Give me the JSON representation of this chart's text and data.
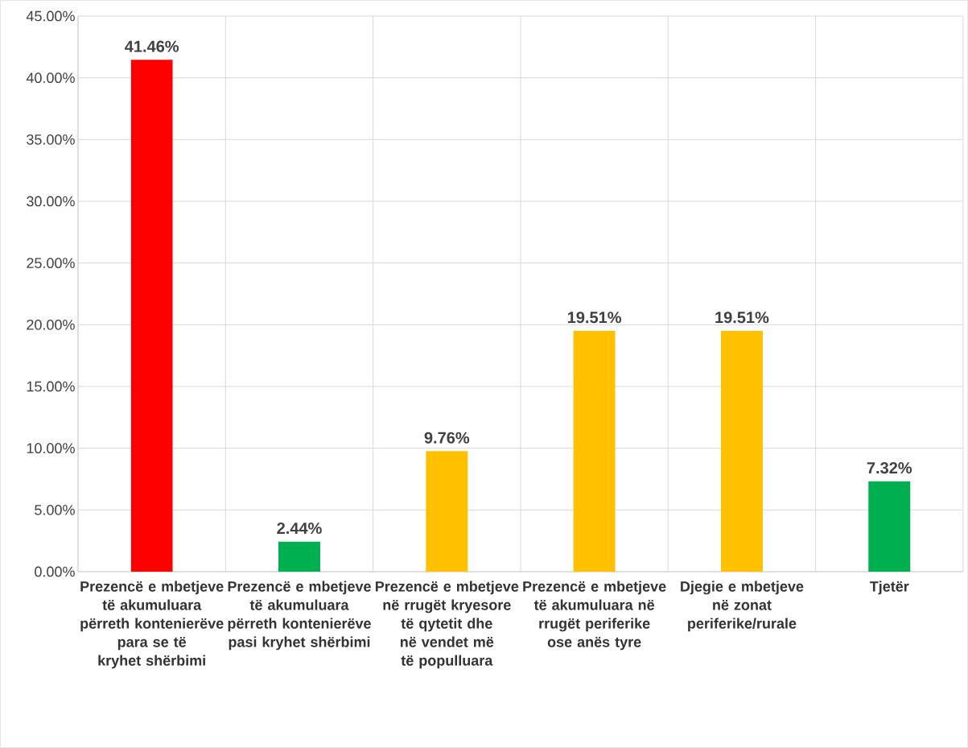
{
  "chart_data": {
    "type": "bar",
    "categories": [
      "Prezencë e mbetjeve të akumuluara përreth kontenierëve para se të kryhet shërbimi",
      "Prezencë e mbetjeve të akumuluara përreth kontenierëve pasi kryhet shërbimi",
      "Prezencë e mbetjeve në rrugët kryesore të qytetit dhe në vendet më të populluara",
      "Prezencë e mbetjeve të akumuluara në rrugët periferike ose anës tyre",
      "Djegie e mbetjeve në zonat periferike/rurale",
      "Tjetër"
    ],
    "values": [
      41.46,
      2.44,
      9.76,
      19.51,
      19.51,
      7.32
    ],
    "colors": [
      "#ff0000",
      "#00b050",
      "#ffc000",
      "#ffc000",
      "#ffc000",
      "#00b050"
    ],
    "value_labels": [
      "41.46%",
      "2.44%",
      "9.76%",
      "19.51%",
      "19.51%",
      "7.32%"
    ],
    "ylim": [
      0,
      45
    ],
    "yticks": [
      {
        "value": 0,
        "label": "0.00%"
      },
      {
        "value": 5,
        "label": "5.00%"
      },
      {
        "value": 10,
        "label": "10.00%"
      },
      {
        "value": 15,
        "label": "15.00%"
      },
      {
        "value": 20,
        "label": "20.00%"
      },
      {
        "value": 25,
        "label": "25.00%"
      },
      {
        "value": 30,
        "label": "30.00%"
      },
      {
        "value": 35,
        "label": "35.00%"
      },
      {
        "value": 40,
        "label": "40.00%"
      },
      {
        "value": 45,
        "label": "45.00%"
      }
    ],
    "grid": true
  }
}
